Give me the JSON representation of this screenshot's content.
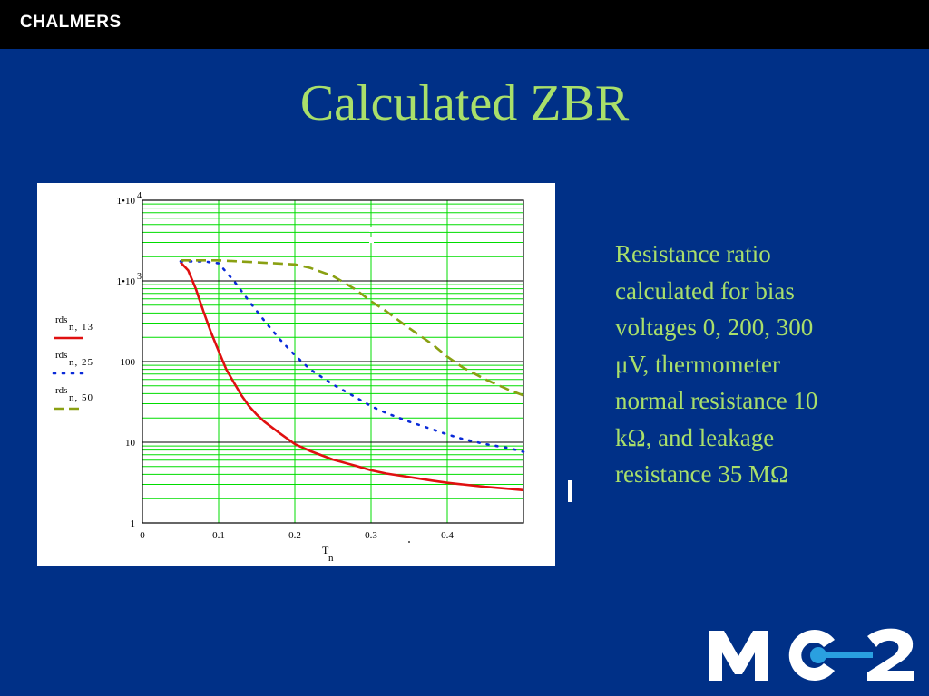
{
  "header": {
    "brand": "CHALMERS"
  },
  "slide": {
    "title": "Calculated ZBR",
    "description_lines": [
      "Resistance ratio",
      "calculated for bias",
      "voltages 0, 200, 300",
      "μV, thermometer",
      "normal resistance 10",
      "kΩ, and leakage",
      "resistance 35 MΩ"
    ],
    "logo_text": "MC2"
  },
  "colors": {
    "background": "#003087",
    "title": "#a9df6a",
    "grid": "#00dd00",
    "series_13": "#e01010",
    "series_25": "#0a2ad8",
    "series_50": "#8aa012"
  },
  "chart_data": {
    "type": "line",
    "y_scale": "log",
    "ylim": [
      1,
      10000
    ],
    "xlim": [
      0,
      0.5
    ],
    "x_ticks": [
      "0",
      "0.1",
      "0.2",
      "0.3",
      "0.4"
    ],
    "xlabel": "T",
    "xlabel_sub": "n",
    "y_tick_labels": [
      {
        "main": "1•10",
        "sup": "4"
      },
      {
        "main": "1•10",
        "sup": "3"
      },
      {
        "main": "100",
        "sup": ""
      },
      {
        "main": "10",
        "sup": ""
      },
      {
        "main": "1",
        "sup": ""
      }
    ],
    "grid": true,
    "legend_position": "left",
    "series": [
      {
        "name": "rds",
        "subscript": "n, 13",
        "style": "solid",
        "points": [
          [
            0.05,
            1700
          ],
          [
            0.06,
            1350
          ],
          [
            0.07,
            800
          ],
          [
            0.08,
            420
          ],
          [
            0.09,
            230
          ],
          [
            0.1,
            135
          ],
          [
            0.11,
            80
          ],
          [
            0.12,
            55
          ],
          [
            0.13,
            38
          ],
          [
            0.14,
            28
          ],
          [
            0.15,
            22
          ],
          [
            0.16,
            18
          ],
          [
            0.18,
            13
          ],
          [
            0.2,
            9.5
          ],
          [
            0.22,
            7.8
          ],
          [
            0.25,
            6.1
          ],
          [
            0.28,
            5.1
          ],
          [
            0.3,
            4.5
          ],
          [
            0.32,
            4.1
          ],
          [
            0.35,
            3.7
          ],
          [
            0.38,
            3.35
          ],
          [
            0.4,
            3.15
          ],
          [
            0.42,
            3.0
          ],
          [
            0.45,
            2.8
          ],
          [
            0.48,
            2.65
          ],
          [
            0.5,
            2.55
          ]
        ]
      },
      {
        "name": "rds",
        "subscript": "n, 25",
        "style": "dotted",
        "points": [
          [
            0.05,
            1750
          ],
          [
            0.08,
            1750
          ],
          [
            0.1,
            1650
          ],
          [
            0.12,
            1000
          ],
          [
            0.14,
            560
          ],
          [
            0.16,
            320
          ],
          [
            0.18,
            190
          ],
          [
            0.2,
            120
          ],
          [
            0.22,
            80
          ],
          [
            0.25,
            52
          ],
          [
            0.28,
            36
          ],
          [
            0.3,
            28
          ],
          [
            0.32,
            23
          ],
          [
            0.35,
            18
          ],
          [
            0.38,
            14.5
          ],
          [
            0.4,
            12.5
          ],
          [
            0.42,
            11
          ],
          [
            0.45,
            9.5
          ],
          [
            0.48,
            8.5
          ],
          [
            0.5,
            7.6
          ]
        ]
      },
      {
        "name": "rds",
        "subscript": "n, 50",
        "style": "dashed",
        "points": [
          [
            0.05,
            1800
          ],
          [
            0.1,
            1800
          ],
          [
            0.15,
            1700
          ],
          [
            0.2,
            1600
          ],
          [
            0.22,
            1450
          ],
          [
            0.25,
            1150
          ],
          [
            0.28,
            780
          ],
          [
            0.3,
            560
          ],
          [
            0.32,
            420
          ],
          [
            0.35,
            260
          ],
          [
            0.38,
            165
          ],
          [
            0.4,
            115
          ],
          [
            0.42,
            85
          ],
          [
            0.45,
            60
          ],
          [
            0.48,
            45
          ],
          [
            0.5,
            38
          ]
        ]
      }
    ]
  }
}
